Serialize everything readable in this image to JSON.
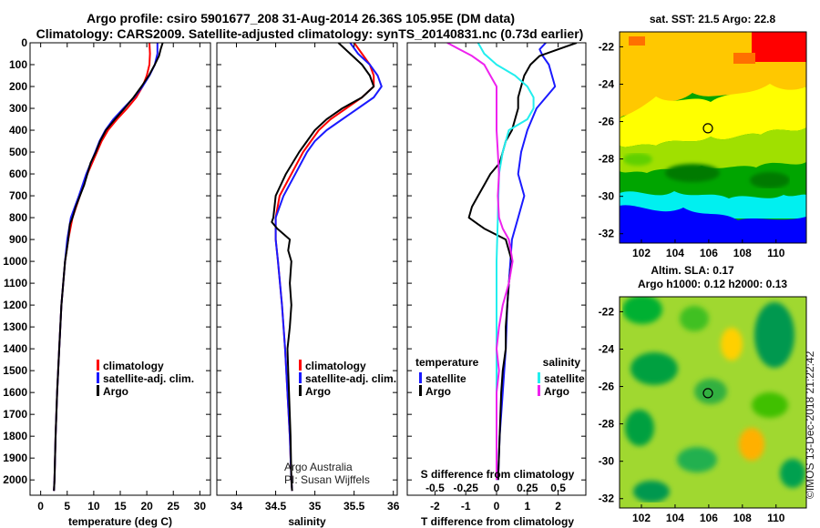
{
  "title_line1": "Argo profile: csiro 5901677_208 31-Aug-2014 26.36S 105.95E (DM data)",
  "title_line2": "Climatology: CARS2009. Satellite-adjusted climatology: synTS_20140831.nc (0.73d earlier)",
  "colors": {
    "red": "#ff0000",
    "blue": "#1a1aff",
    "black": "#000000",
    "cyan": "#22eeee",
    "magenta": "#ee22ee"
  },
  "panel_titles": {
    "sst": "sat. SST: 21.5 Argo: 22.8",
    "sla1": "Altim. SLA: 0.17",
    "sla2": "Argo h1000: 0.12 h2000: 0.13"
  },
  "credits": {
    "institution": "Argo Australia",
    "pi": "PI: Susan Wijffels",
    "stamp": "©IMOS 13-Dec-2018 21:22:42"
  },
  "chart_data": [
    {
      "id": "temperature",
      "type": "line",
      "xlabel": "temperature (deg C)",
      "ylabel": "",
      "xlim": [
        -2,
        32
      ],
      "ylim": [
        2070,
        0
      ],
      "xticks": [
        0,
        5,
        10,
        15,
        20,
        25,
        30
      ],
      "yticks": [
        0,
        100,
        200,
        300,
        400,
        500,
        600,
        700,
        800,
        900,
        1000,
        1100,
        1200,
        1300,
        1400,
        1500,
        1600,
        1700,
        1800,
        1900,
        2000
      ],
      "legend": [
        "climatology",
        "satellite-adj. clim.",
        "Argo"
      ],
      "series": [
        {
          "name": "climatology",
          "color": "red",
          "depth": [
            0,
            50,
            100,
            150,
            200,
            250,
            300,
            350,
            400,
            450,
            500,
            600,
            700,
            800,
            900,
            1000,
            1200,
            1400,
            1600,
            1800,
            2000,
            2050
          ],
          "values": [
            20.5,
            20.6,
            20.5,
            20,
            19.2,
            18,
            16.3,
            14.4,
            12.7,
            11.5,
            10.6,
            8.8,
            7.4,
            6,
            5.2,
            4.6,
            3.9,
            3.5,
            3.1,
            2.8,
            2.6,
            2.5
          ]
        },
        {
          "name": "satellite-adj. clim.",
          "color": "blue",
          "depth": [
            0,
            50,
            100,
            150,
            200,
            250,
            300,
            350,
            400,
            450,
            500,
            600,
            700,
            800,
            900,
            1000,
            1200,
            1400,
            1600,
            1800,
            2000,
            2050
          ],
          "values": [
            22,
            22,
            21.5,
            20.5,
            19.2,
            17.6,
            15.6,
            13.7,
            12.2,
            11.1,
            10.3,
            8.6,
            7.2,
            5.7,
            5,
            4.6,
            3.9,
            3.5,
            3.1,
            2.8,
            2.6,
            2.5
          ]
        },
        {
          "name": "Argo",
          "color": "black",
          "depth": [
            0,
            30,
            60,
            100,
            150,
            200,
            250,
            300,
            350,
            400,
            450,
            500,
            550,
            600,
            650,
            700,
            750,
            800,
            830,
            900,
            950,
            1000,
            1200,
            1400,
            1600,
            1800,
            2000,
            2050
          ],
          "values": [
            23,
            22.6,
            22.3,
            21.5,
            20.4,
            19,
            17.5,
            15.8,
            14,
            12.3,
            11.2,
            10.4,
            9.4,
            8.8,
            8.2,
            7.4,
            6.6,
            6,
            5.5,
            5.2,
            4.9,
            4.6,
            3.9,
            3.5,
            3.1,
            2.8,
            2.6,
            2.5
          ]
        }
      ]
    },
    {
      "id": "salinity",
      "type": "line",
      "xlabel": "salinity",
      "ylabel": "",
      "xlim": [
        33.75,
        36.05
      ],
      "ylim": [
        2070,
        0
      ],
      "xticks": [
        34,
        34.5,
        35,
        35.5,
        36
      ],
      "legend": [
        "climatology",
        "satellite-adj. clim.",
        "Argo"
      ],
      "series": [
        {
          "name": "climatology",
          "color": "red",
          "depth": [
            0,
            50,
            100,
            150,
            200,
            250,
            300,
            350,
            400,
            450,
            500,
            600,
            700,
            800,
            900,
            1000,
            1200,
            1400,
            1600,
            1800,
            2000,
            2050
          ],
          "values": [
            35.5,
            35.6,
            35.7,
            35.75,
            35.75,
            35.6,
            35.4,
            35.2,
            35.05,
            34.95,
            34.85,
            34.7,
            34.55,
            34.5,
            34.5,
            34.53,
            34.58,
            34.62,
            34.65,
            34.68,
            34.7,
            34.71
          ]
        },
        {
          "name": "satellite-adj. clim.",
          "color": "blue",
          "depth": [
            0,
            50,
            100,
            150,
            200,
            250,
            300,
            350,
            400,
            450,
            500,
            600,
            700,
            800,
            900,
            1000,
            1200,
            1400,
            1600,
            1800,
            2000,
            2050
          ],
          "values": [
            35.45,
            35.55,
            35.7,
            35.8,
            35.85,
            35.75,
            35.55,
            35.35,
            35.15,
            35,
            34.9,
            34.75,
            34.6,
            34.5,
            34.5,
            34.53,
            34.58,
            34.62,
            34.65,
            34.68,
            34.7,
            34.71
          ]
        },
        {
          "name": "Argo",
          "color": "black",
          "depth": [
            0,
            50,
            100,
            150,
            200,
            250,
            300,
            350,
            400,
            450,
            500,
            600,
            700,
            800,
            820,
            850,
            900,
            950,
            1000,
            1100,
            1200,
            1300,
            1400,
            1500,
            1600,
            1800,
            2000,
            2050
          ],
          "values": [
            35.3,
            35.45,
            35.6,
            35.7,
            35.75,
            35.6,
            35.35,
            35.15,
            35,
            34.9,
            34.8,
            34.63,
            34.5,
            34.47,
            34.45,
            34.52,
            34.68,
            34.66,
            34.7,
            34.68,
            34.7,
            34.68,
            34.65,
            34.66,
            34.67,
            34.69,
            34.7,
            34.71
          ]
        }
      ]
    },
    {
      "id": "difference",
      "type": "line",
      "xlabel": "T difference from climatology",
      "x2label": "S difference from climatology",
      "xlim": [
        -2.9,
        2.9
      ],
      "x2lim": [
        -0.725,
        0.725
      ],
      "ylim": [
        2070,
        0
      ],
      "xticks": [
        -2,
        -1,
        0,
        1,
        2
      ],
      "x2ticks": [
        -0.5,
        -0.25,
        0,
        0.25,
        0.5
      ],
      "x2ticklabels": [
        "-0.5",
        "-0.25",
        "0",
        "0.25",
        "0.5"
      ],
      "legend_left_title": "temperature",
      "legend_right_title": "salinity",
      "legend_left": [
        "satellite",
        "Argo"
      ],
      "legend_right": [
        "satellite",
        "Argo"
      ],
      "series": [
        {
          "name": "T satellite",
          "color": "blue",
          "axis": "T",
          "depth": [
            0,
            30,
            60,
            100,
            150,
            200,
            300,
            400,
            500,
            600,
            700,
            800,
            900,
            1000,
            1100,
            1200,
            1400,
            1600,
            1800,
            2000
          ],
          "values": [
            1.6,
            1.4,
            1.5,
            1.7,
            1.8,
            1.9,
            1.3,
            1.0,
            0.8,
            0.7,
            0.9,
            0.7,
            0.5,
            0.45,
            0.4,
            0.35,
            0.3,
            0.2,
            0.1,
            0.05
          ]
        },
        {
          "name": "T Argo",
          "color": "black",
          "axis": "T",
          "depth": [
            0,
            30,
            60,
            100,
            150,
            200,
            250,
            300,
            350,
            400,
            450,
            500,
            550,
            600,
            650,
            700,
            750,
            800,
            830,
            850,
            900,
            950,
            1000,
            1100,
            1200,
            1300,
            1400,
            1500,
            1600,
            1800,
            2000
          ],
          "values": [
            2.6,
            2,
            1.4,
            1.1,
            0.9,
            0.8,
            0.7,
            0.7,
            0.6,
            0.5,
            0.3,
            0.2,
            0.1,
            -0.2,
            -0.4,
            -0.6,
            -0.8,
            -0.9,
            -0.6,
            -0.4,
            0.3,
            0.4,
            0.5,
            0.4,
            0.35,
            0.3,
            0.3,
            0.2,
            0.15,
            0.1,
            0.05
          ]
        },
        {
          "name": "S satellite",
          "color": "cyan",
          "axis": "S",
          "depth": [
            0,
            50,
            100,
            150,
            200,
            250,
            300,
            350,
            400,
            500,
            600,
            800,
            1000,
            1200,
            1400,
            1600,
            1800,
            2000
          ],
          "values": [
            -0.15,
            -0.1,
            0,
            0.15,
            0.25,
            0.3,
            0.3,
            0.25,
            0.1,
            0.05,
            0.02,
            0.01,
            0,
            0,
            0,
            0,
            0,
            0
          ]
        },
        {
          "name": "S Argo",
          "color": "magenta",
          "axis": "S",
          "depth": [
            0,
            30,
            60,
            100,
            150,
            200,
            250,
            300,
            350,
            400,
            500,
            600,
            700,
            800,
            850,
            900,
            1000,
            1100,
            1200,
            1300,
            1400,
            1500,
            1600,
            1800,
            2000
          ],
          "values": [
            -0.4,
            -0.3,
            -0.2,
            -0.1,
            -0.05,
            0.0,
            0.0,
            0.0,
            0.0,
            0.0,
            0.01,
            0.02,
            0.01,
            0.02,
            0.05,
            0.1,
            0.13,
            0.1,
            0.05,
            0.02,
            0.0,
            0.02,
            0.0,
            0.0,
            0.0
          ]
        }
      ]
    },
    {
      "id": "sst_map",
      "type": "heatmap",
      "xticks": [
        102,
        104,
        106,
        108,
        110
      ],
      "yticks": [
        -22,
        -24,
        -26,
        -28,
        -30,
        -32
      ],
      "xlim": [
        100.7,
        111.8
      ],
      "ylim": [
        -32.5,
        -21.2
      ],
      "argo_position": [
        105.95,
        -26.36
      ]
    },
    {
      "id": "sla_map",
      "type": "heatmap",
      "xticks": [
        102,
        104,
        106,
        108,
        110
      ],
      "yticks": [
        -22,
        -24,
        -26,
        -28,
        -30,
        -32
      ],
      "xlim": [
        100.7,
        111.8
      ],
      "ylim": [
        -32.5,
        -21.2
      ],
      "argo_position": [
        105.95,
        -26.36
      ]
    }
  ]
}
